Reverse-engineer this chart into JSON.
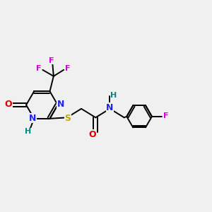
{
  "bg_color": "#f0f0f0",
  "bond_color": "#000000",
  "lw": 1.4,
  "doff": 0.011,
  "colors": {
    "N": "#2222ee",
    "O": "#dd0000",
    "S": "#bbaa00",
    "F": "#dd00dd",
    "H": "#008888"
  },
  "fs": 9,
  "fsh": 8
}
